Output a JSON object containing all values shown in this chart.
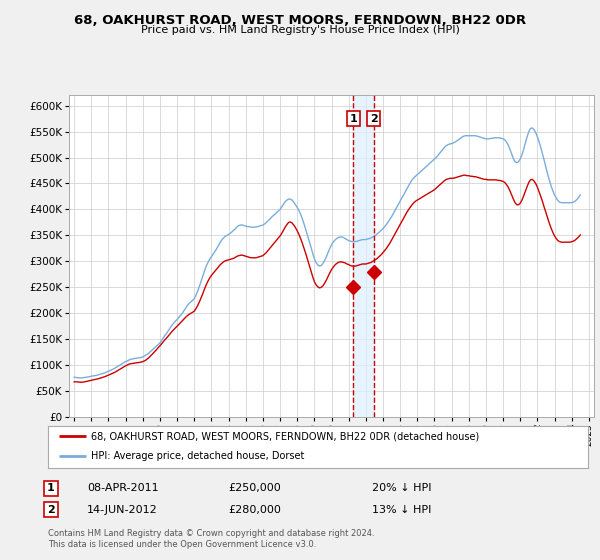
{
  "title": "68, OAKHURST ROAD, WEST MOORS, FERNDOWN, BH22 0DR",
  "subtitle": "Price paid vs. HM Land Registry's House Price Index (HPI)",
  "legend_line1": "68, OAKHURST ROAD, WEST MOORS, FERNDOWN, BH22 0DR (detached house)",
  "legend_line2": "HPI: Average price, detached house, Dorset",
  "transaction1_label": "1",
  "transaction1_date": "08-APR-2011",
  "transaction1_price": "£250,000",
  "transaction1_pct": "20% ↓ HPI",
  "transaction1_year": 2011.27,
  "transaction1_value": 250000,
  "transaction2_label": "2",
  "transaction2_date": "14-JUN-2012",
  "transaction2_price": "£280,000",
  "transaction2_pct": "13% ↓ HPI",
  "transaction2_year": 2012.46,
  "transaction2_value": 280000,
  "ylim": [
    0,
    620000
  ],
  "xlim": [
    1994.7,
    2025.3
  ],
  "yticks": [
    0,
    50000,
    100000,
    150000,
    200000,
    250000,
    300000,
    350000,
    400000,
    450000,
    500000,
    550000,
    600000
  ],
  "background_color": "#f0f0f0",
  "plot_bg_color": "#ffffff",
  "red_line_color": "#cc0000",
  "blue_line_color": "#7aaddb",
  "vline_color": "#cc0000",
  "shade_color": "#ddeeff",
  "footnote1": "Contains HM Land Registry data © Crown copyright and database right 2024.",
  "footnote2": "This data is licensed under the Open Government Licence v3.0.",
  "hpi_x": [
    1995.0,
    1995.1,
    1995.2,
    1995.3,
    1995.4,
    1995.5,
    1995.6,
    1995.7,
    1995.8,
    1995.9,
    1996.0,
    1996.1,
    1996.2,
    1996.3,
    1996.4,
    1996.5,
    1996.6,
    1996.7,
    1996.8,
    1996.9,
    1997.0,
    1997.1,
    1997.2,
    1997.3,
    1997.4,
    1997.5,
    1997.6,
    1997.7,
    1997.8,
    1997.9,
    1998.0,
    1998.1,
    1998.2,
    1998.3,
    1998.4,
    1998.5,
    1998.6,
    1998.7,
    1998.8,
    1998.9,
    1999.0,
    1999.1,
    1999.2,
    1999.3,
    1999.4,
    1999.5,
    1999.6,
    1999.7,
    1999.8,
    1999.9,
    2000.0,
    2000.1,
    2000.2,
    2000.3,
    2000.4,
    2000.5,
    2000.6,
    2000.7,
    2000.8,
    2000.9,
    2001.0,
    2001.1,
    2001.2,
    2001.3,
    2001.4,
    2001.5,
    2001.6,
    2001.7,
    2001.8,
    2001.9,
    2002.0,
    2002.1,
    2002.2,
    2002.3,
    2002.4,
    2002.5,
    2002.6,
    2002.7,
    2002.8,
    2002.9,
    2003.0,
    2003.1,
    2003.2,
    2003.3,
    2003.4,
    2003.5,
    2003.6,
    2003.7,
    2003.8,
    2003.9,
    2004.0,
    2004.1,
    2004.2,
    2004.3,
    2004.4,
    2004.5,
    2004.6,
    2004.7,
    2004.8,
    2004.9,
    2005.0,
    2005.1,
    2005.2,
    2005.3,
    2005.4,
    2005.5,
    2005.6,
    2005.7,
    2005.8,
    2005.9,
    2006.0,
    2006.1,
    2006.2,
    2006.3,
    2006.4,
    2006.5,
    2006.6,
    2006.7,
    2006.8,
    2006.9,
    2007.0,
    2007.1,
    2007.2,
    2007.3,
    2007.4,
    2007.5,
    2007.6,
    2007.7,
    2007.8,
    2007.9,
    2008.0,
    2008.1,
    2008.2,
    2008.3,
    2008.4,
    2008.5,
    2008.6,
    2008.7,
    2008.8,
    2008.9,
    2009.0,
    2009.1,
    2009.2,
    2009.3,
    2009.4,
    2009.5,
    2009.6,
    2009.7,
    2009.8,
    2009.9,
    2010.0,
    2010.1,
    2010.2,
    2010.3,
    2010.4,
    2010.5,
    2010.6,
    2010.7,
    2010.8,
    2010.9,
    2011.0,
    2011.1,
    2011.2,
    2011.3,
    2011.4,
    2011.5,
    2011.6,
    2011.7,
    2011.8,
    2011.9,
    2012.0,
    2012.1,
    2012.2,
    2012.3,
    2012.4,
    2012.5,
    2012.6,
    2012.7,
    2012.8,
    2012.9,
    2013.0,
    2013.1,
    2013.2,
    2013.3,
    2013.4,
    2013.5,
    2013.6,
    2013.7,
    2013.8,
    2013.9,
    2014.0,
    2014.1,
    2014.2,
    2014.3,
    2014.4,
    2014.5,
    2014.6,
    2014.7,
    2014.8,
    2014.9,
    2015.0,
    2015.1,
    2015.2,
    2015.3,
    2015.4,
    2015.5,
    2015.6,
    2015.7,
    2015.8,
    2015.9,
    2016.0,
    2016.1,
    2016.2,
    2016.3,
    2016.4,
    2016.5,
    2016.6,
    2016.7,
    2016.8,
    2016.9,
    2017.0,
    2017.1,
    2017.2,
    2017.3,
    2017.4,
    2017.5,
    2017.6,
    2017.7,
    2017.8,
    2017.9,
    2018.0,
    2018.1,
    2018.2,
    2018.3,
    2018.4,
    2018.5,
    2018.6,
    2018.7,
    2018.8,
    2018.9,
    2019.0,
    2019.1,
    2019.2,
    2019.3,
    2019.4,
    2019.5,
    2019.6,
    2019.7,
    2019.8,
    2019.9,
    2020.0,
    2020.1,
    2020.2,
    2020.3,
    2020.4,
    2020.5,
    2020.6,
    2020.7,
    2020.8,
    2020.9,
    2021.0,
    2021.1,
    2021.2,
    2021.3,
    2021.4,
    2021.5,
    2021.6,
    2021.7,
    2021.8,
    2021.9,
    2022.0,
    2022.1,
    2022.2,
    2022.3,
    2022.4,
    2022.5,
    2022.6,
    2022.7,
    2022.8,
    2022.9,
    2023.0,
    2023.1,
    2023.2,
    2023.3,
    2023.4,
    2023.5,
    2023.6,
    2023.7,
    2023.8,
    2023.9,
    2024.0,
    2024.1,
    2024.2,
    2024.3,
    2024.4,
    2024.5
  ],
  "hpi_y": [
    77000,
    76500,
    76000,
    75800,
    75500,
    76000,
    76500,
    77000,
    77500,
    78000,
    79000,
    79500,
    80000,
    80500,
    81500,
    82500,
    83500,
    84500,
    85500,
    87000,
    88500,
    90000,
    91500,
    93000,
    95000,
    97000,
    99000,
    101000,
    103000,
    105000,
    107000,
    108500,
    110000,
    111500,
    112000,
    113000,
    113500,
    114000,
    114500,
    115000,
    116000,
    118000,
    120000,
    122000,
    125000,
    128000,
    131000,
    134000,
    137000,
    140000,
    143000,
    148000,
    153000,
    158000,
    162000,
    167000,
    172000,
    177000,
    181000,
    185000,
    188000,
    192000,
    196000,
    200000,
    205000,
    210000,
    215000,
    219000,
    222000,
    225000,
    228000,
    235000,
    243000,
    252000,
    262000,
    272000,
    282000,
    291000,
    298000,
    304000,
    309000,
    314000,
    319000,
    324000,
    330000,
    336000,
    341000,
    345000,
    348000,
    350000,
    352000,
    354000,
    357000,
    360000,
    363000,
    367000,
    369000,
    370000,
    370000,
    369000,
    368000,
    367000,
    367000,
    366000,
    366000,
    366000,
    366000,
    367000,
    368000,
    369000,
    370000,
    372000,
    375000,
    378000,
    381000,
    385000,
    388000,
    391000,
    394000,
    397000,
    400000,
    405000,
    410000,
    415000,
    418000,
    420000,
    420000,
    418000,
    414000,
    409000,
    404000,
    398000,
    391000,
    382000,
    372000,
    361000,
    350000,
    339000,
    328000,
    316000,
    305000,
    298000,
    293000,
    291000,
    292000,
    296000,
    302000,
    309000,
    317000,
    325000,
    332000,
    337000,
    341000,
    344000,
    346000,
    347000,
    347000,
    346000,
    344000,
    342000,
    340000,
    339000,
    338000,
    338000,
    338000,
    339000,
    340000,
    341000,
    342000,
    342000,
    342000,
    343000,
    344000,
    345000,
    347000,
    349000,
    351000,
    354000,
    357000,
    360000,
    363000,
    367000,
    371000,
    376000,
    381000,
    386000,
    392000,
    398000,
    404000,
    410000,
    416000,
    422000,
    428000,
    434000,
    440000,
    446000,
    452000,
    457000,
    461000,
    464000,
    467000,
    470000,
    473000,
    476000,
    479000,
    482000,
    485000,
    488000,
    491000,
    494000,
    497000,
    500000,
    504000,
    508000,
    512000,
    516000,
    520000,
    523000,
    525000,
    526000,
    527000,
    528000,
    530000,
    532000,
    534000,
    537000,
    539000,
    541000,
    542000,
    542000,
    542000,
    542000,
    542000,
    542000,
    542000,
    541000,
    540000,
    539000,
    538000,
    537000,
    536000,
    536000,
    536000,
    537000,
    537000,
    538000,
    538000,
    538000,
    538000,
    537000,
    536000,
    534000,
    530000,
    524000,
    516000,
    507000,
    498000,
    492000,
    490000,
    492000,
    497000,
    505000,
    516000,
    528000,
    540000,
    550000,
    556000,
    557000,
    554000,
    548000,
    540000,
    530000,
    519000,
    507000,
    494000,
    481000,
    468000,
    456000,
    445000,
    436000,
    428000,
    422000,
    417000,
    414000,
    413000,
    413000,
    413000,
    413000,
    413000,
    413000,
    413000,
    414000,
    416000,
    419000,
    423000,
    428000
  ],
  "prop_x": [
    1995.0,
    1995.1,
    1995.2,
    1995.3,
    1995.4,
    1995.5,
    1995.6,
    1995.7,
    1995.8,
    1995.9,
    1996.0,
    1996.1,
    1996.2,
    1996.3,
    1996.4,
    1996.5,
    1996.6,
    1996.7,
    1996.8,
    1996.9,
    1997.0,
    1997.1,
    1997.2,
    1997.3,
    1997.4,
    1997.5,
    1997.6,
    1997.7,
    1997.8,
    1997.9,
    1998.0,
    1998.1,
    1998.2,
    1998.3,
    1998.4,
    1998.5,
    1998.6,
    1998.7,
    1998.8,
    1998.9,
    1999.0,
    1999.1,
    1999.2,
    1999.3,
    1999.4,
    1999.5,
    1999.6,
    1999.7,
    1999.8,
    1999.9,
    2000.0,
    2000.1,
    2000.2,
    2000.3,
    2000.4,
    2000.5,
    2000.6,
    2000.7,
    2000.8,
    2000.9,
    2001.0,
    2001.1,
    2001.2,
    2001.3,
    2001.4,
    2001.5,
    2001.6,
    2001.7,
    2001.8,
    2001.9,
    2002.0,
    2002.1,
    2002.2,
    2002.3,
    2002.4,
    2002.5,
    2002.6,
    2002.7,
    2002.8,
    2002.9,
    2003.0,
    2003.1,
    2003.2,
    2003.3,
    2003.4,
    2003.5,
    2003.6,
    2003.7,
    2003.8,
    2003.9,
    2004.0,
    2004.1,
    2004.2,
    2004.3,
    2004.4,
    2004.5,
    2004.6,
    2004.7,
    2004.8,
    2004.9,
    2005.0,
    2005.1,
    2005.2,
    2005.3,
    2005.4,
    2005.5,
    2005.6,
    2005.7,
    2005.8,
    2005.9,
    2006.0,
    2006.1,
    2006.2,
    2006.3,
    2006.4,
    2006.5,
    2006.6,
    2006.7,
    2006.8,
    2006.9,
    2007.0,
    2007.1,
    2007.2,
    2007.3,
    2007.4,
    2007.5,
    2007.6,
    2007.7,
    2007.8,
    2007.9,
    2008.0,
    2008.1,
    2008.2,
    2008.3,
    2008.4,
    2008.5,
    2008.6,
    2008.7,
    2008.8,
    2008.9,
    2009.0,
    2009.1,
    2009.2,
    2009.3,
    2009.4,
    2009.5,
    2009.6,
    2009.7,
    2009.8,
    2009.9,
    2010.0,
    2010.1,
    2010.2,
    2010.3,
    2010.4,
    2010.5,
    2010.6,
    2010.7,
    2010.8,
    2010.9,
    2011.0,
    2011.1,
    2011.2,
    2011.3,
    2011.4,
    2011.5,
    2011.6,
    2011.7,
    2011.8,
    2011.9,
    2012.0,
    2012.1,
    2012.2,
    2012.3,
    2012.4,
    2012.5,
    2012.6,
    2012.7,
    2012.8,
    2012.9,
    2013.0,
    2013.1,
    2013.2,
    2013.3,
    2013.4,
    2013.5,
    2013.6,
    2013.7,
    2013.8,
    2013.9,
    2014.0,
    2014.1,
    2014.2,
    2014.3,
    2014.4,
    2014.5,
    2014.6,
    2014.7,
    2014.8,
    2014.9,
    2015.0,
    2015.1,
    2015.2,
    2015.3,
    2015.4,
    2015.5,
    2015.6,
    2015.7,
    2015.8,
    2015.9,
    2016.0,
    2016.1,
    2016.2,
    2016.3,
    2016.4,
    2016.5,
    2016.6,
    2016.7,
    2016.8,
    2016.9,
    2017.0,
    2017.1,
    2017.2,
    2017.3,
    2017.4,
    2017.5,
    2017.6,
    2017.7,
    2017.8,
    2017.9,
    2018.0,
    2018.1,
    2018.2,
    2018.3,
    2018.4,
    2018.5,
    2018.6,
    2018.7,
    2018.8,
    2018.9,
    2019.0,
    2019.1,
    2019.2,
    2019.3,
    2019.4,
    2019.5,
    2019.6,
    2019.7,
    2019.8,
    2019.9,
    2020.0,
    2020.1,
    2020.2,
    2020.3,
    2020.4,
    2020.5,
    2020.6,
    2020.7,
    2020.8,
    2020.9,
    2021.0,
    2021.1,
    2021.2,
    2021.3,
    2021.4,
    2021.5,
    2021.6,
    2021.7,
    2021.8,
    2021.9,
    2022.0,
    2022.1,
    2022.2,
    2022.3,
    2022.4,
    2022.5,
    2022.6,
    2022.7,
    2022.8,
    2022.9,
    2023.0,
    2023.1,
    2023.2,
    2023.3,
    2023.4,
    2023.5,
    2023.6,
    2023.7,
    2023.8,
    2023.9,
    2024.0,
    2024.1,
    2024.2,
    2024.3,
    2024.4,
    2024.5
  ],
  "prop_y": [
    68000,
    68200,
    68000,
    67500,
    67200,
    67500,
    68000,
    68800,
    69500,
    70200,
    71000,
    71800,
    72500,
    73200,
    74000,
    75000,
    76000,
    77000,
    78200,
    79500,
    81000,
    82500,
    84000,
    85500,
    87000,
    89000,
    91000,
    93000,
    95000,
    97000,
    99000,
    100500,
    102000,
    103000,
    103500,
    104000,
    104500,
    105000,
    105500,
    106000,
    107000,
    108500,
    110500,
    113000,
    116000,
    119500,
    123000,
    126500,
    130000,
    134000,
    137500,
    141500,
    145500,
    149500,
    153000,
    157000,
    161000,
    165000,
    168500,
    172000,
    175000,
    178500,
    182000,
    185500,
    189000,
    192500,
    195500,
    198000,
    200000,
    202000,
    204000,
    209000,
    215000,
    222000,
    230000,
    238000,
    247000,
    255000,
    262000,
    268000,
    273000,
    277000,
    281000,
    285000,
    289000,
    293000,
    296000,
    299000,
    301000,
    302000,
    303000,
    304000,
    305000,
    306000,
    308000,
    310000,
    311000,
    312000,
    312000,
    311000,
    310000,
    309000,
    308000,
    307000,
    307000,
    307000,
    307000,
    308000,
    309000,
    310000,
    311000,
    314000,
    317000,
    321000,
    325000,
    329000,
    333000,
    337000,
    341000,
    345000,
    349000,
    354000,
    360000,
    366000,
    371000,
    375000,
    376000,
    374000,
    370000,
    365000,
    359000,
    352000,
    344000,
    335000,
    325000,
    315000,
    304000,
    293000,
    282000,
    271000,
    261000,
    255000,
    251000,
    249000,
    250000,
    253000,
    258000,
    264000,
    271000,
    278000,
    284000,
    289000,
    293000,
    296000,
    298000,
    299000,
    299000,
    298000,
    297000,
    295000,
    294000,
    292000,
    291000,
    291000,
    291000,
    292000,
    293000,
    294000,
    295000,
    295000,
    295000,
    296000,
    297000,
    298000,
    300000,
    302000,
    304000,
    307000,
    310000,
    313000,
    317000,
    321000,
    325000,
    330000,
    335000,
    341000,
    347000,
    353000,
    359000,
    365000,
    371000,
    377000,
    383000,
    389000,
    395000,
    400000,
    405000,
    409000,
    413000,
    416000,
    418000,
    420000,
    422000,
    424000,
    426000,
    428000,
    430000,
    432000,
    434000,
    436000,
    438000,
    441000,
    444000,
    447000,
    450000,
    453000,
    456000,
    458000,
    459000,
    460000,
    460000,
    460000,
    461000,
    462000,
    463000,
    464000,
    465000,
    466000,
    466000,
    465000,
    465000,
    464000,
    464000,
    463000,
    463000,
    462000,
    461000,
    460000,
    459000,
    458000,
    458000,
    457000,
    457000,
    457000,
    457000,
    457000,
    457000,
    456000,
    456000,
    455000,
    454000,
    452000,
    448000,
    443000,
    436000,
    428000,
    420000,
    413000,
    409000,
    409000,
    412000,
    418000,
    426000,
    435000,
    444000,
    452000,
    457000,
    458000,
    455000,
    450000,
    443000,
    434000,
    425000,
    415000,
    404000,
    394000,
    383000,
    373000,
    364000,
    356000,
    349000,
    344000,
    340000,
    338000,
    337000,
    337000,
    337000,
    337000,
    337000,
    337000,
    338000,
    339000,
    341000,
    344000,
    347000,
    351000
  ]
}
